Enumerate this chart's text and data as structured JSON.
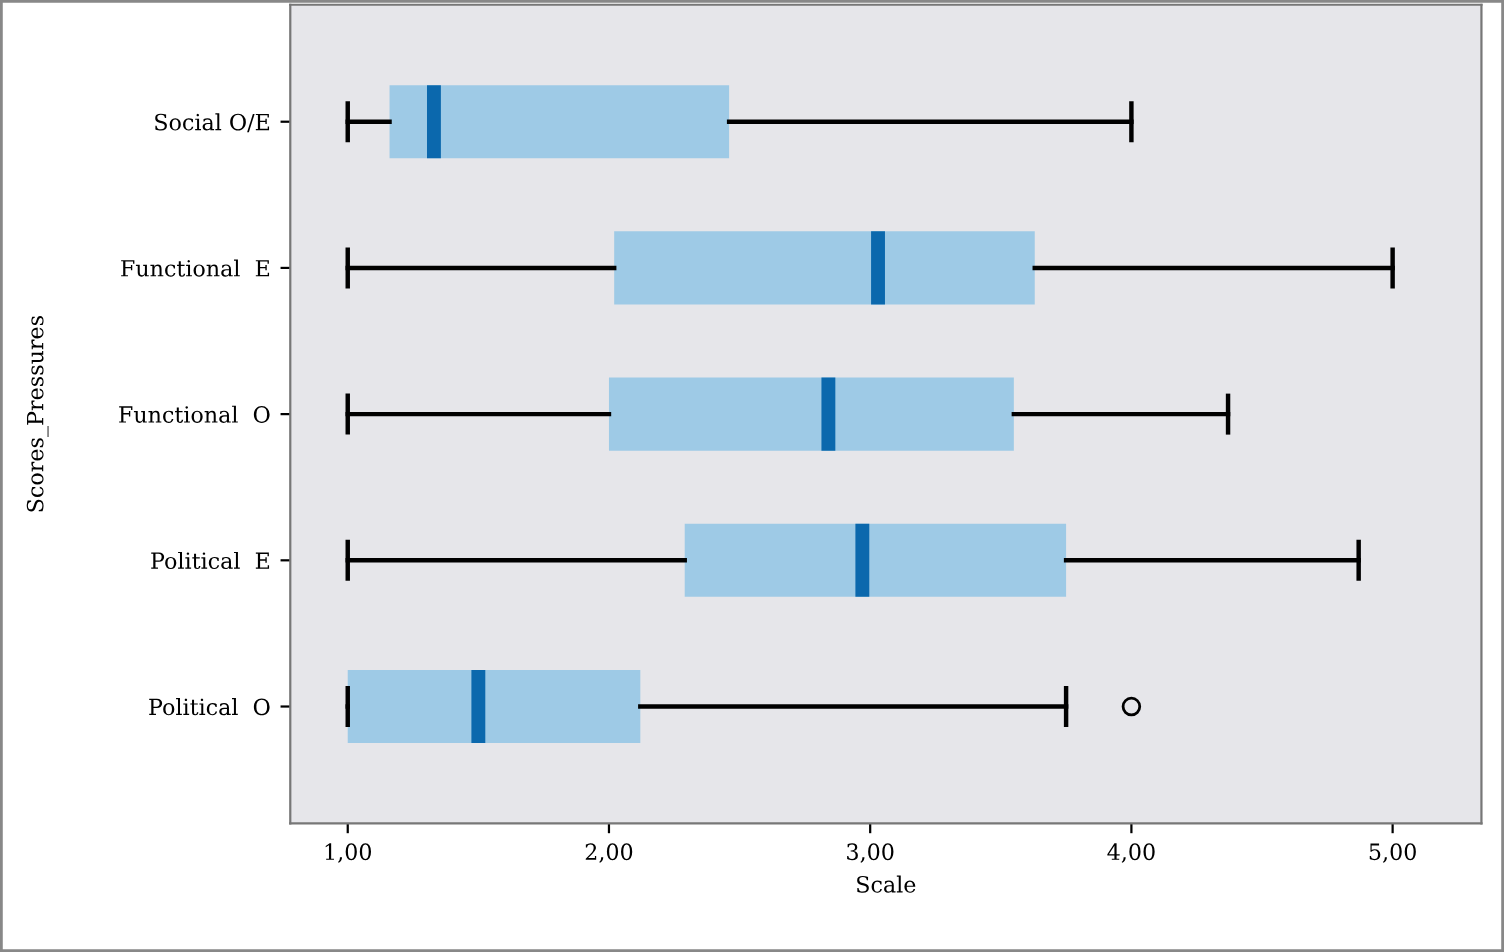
{
  "chart_data": {
    "type": "box",
    "orientation": "horizontal",
    "xlabel": "Scale",
    "ylabel": "Scores_Pressures",
    "categories": [
      "Social O/E",
      "Functional  E",
      "Functional  O",
      "Political  E",
      "Political  O"
    ],
    "boxes": [
      {
        "low": 1.0,
        "q1": 1.16,
        "median": 1.33,
        "q3": 2.46,
        "high": 4.0
      },
      {
        "low": 1.0,
        "q1": 2.02,
        "median": 3.03,
        "q3": 3.63,
        "high": 5.0
      },
      {
        "low": 1.0,
        "q1": 2.0,
        "median": 2.84,
        "q3": 3.55,
        "high": 4.37
      },
      {
        "low": 1.0,
        "q1": 2.29,
        "median": 2.97,
        "q3": 3.75,
        "high": 4.87
      },
      {
        "low": 1.0,
        "q1": 1.0,
        "median": 1.5,
        "q3": 2.12,
        "high": 3.75,
        "outliers": [
          4.0
        ]
      }
    ],
    "color": "#9ecae6",
    "xlim": [
      0.78,
      5.34
    ],
    "xticks": [
      {
        "value": 1,
        "label": "1,00"
      },
      {
        "value": 2,
        "label": "2,00"
      },
      {
        "value": 3,
        "label": "3,00"
      },
      {
        "value": 4,
        "label": "4,00"
      },
      {
        "value": 5,
        "label": "5,00"
      }
    ],
    "grid": false,
    "legend": false
  }
}
